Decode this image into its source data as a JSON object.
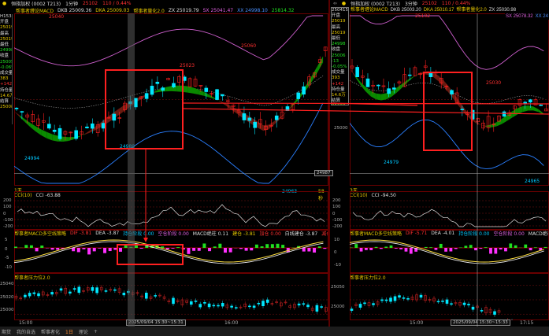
{
  "left": {
    "symbol": "恒指加权 (0002 T213)",
    "period": "1分钟",
    "price": "25102",
    "change": "110 / 0.44%",
    "main_indicator": "帮事者缠论MACD",
    "dkb": "DKB 25009.36",
    "dka": "DKA 25009.03",
    "quant": "帮事者量化2.0",
    "zx": "ZX 25019.79",
    "sx": "SX 25041.47",
    "xx": "XX 24998.10",
    "extra": "25814.32",
    "side_labels": [
      "开盘",
      "25019",
      "最高",
      "25019",
      "最低",
      "24998",
      "收盘",
      "25005",
      "-0.06%",
      "成交量",
      "383",
      "+142",
      "持仓量",
      "14.6万",
      "结算",
      "25008"
    ],
    "side_header": "H1530",
    "price_marks": {
      "high1": "25040",
      "high2": "25023",
      "high3": "25060",
      "low1": "24989",
      "low2": "24994",
      "low3": "24963",
      "last": "24987",
      "countdown": "58秒"
    },
    "range_label": "1天",
    "cci": {
      "title": "CCI(10)",
      "value": "CCI -63.88",
      "ticks": [
        "200",
        "100",
        "0",
        "-100",
        "-200"
      ]
    },
    "macd": {
      "title": "帮事者MACD多空线策略",
      "dif": "DIF -3.81",
      "dea": "DEA -3.87",
      "long": "持仓阶段 0.00",
      "short": "空仓阶段 0.00",
      "bar": "MACD绝柱 0.11",
      "open": "建仓 -3.81",
      "add": "加仓 0.00",
      "white": "白线建仓 -3.87",
      "reduce": "减仓操作 -3.87",
      "ticks": [
        "5",
        "0",
        "-5",
        "-10"
      ]
    },
    "pressure": {
      "title": "帮事者压力位2.0",
      "ticks": [
        "25040",
        "25020",
        "25000"
      ]
    },
    "time_ticks": [
      "15:00",
      "16:00"
    ],
    "cursor_time": "2025/09/04 15:30~15:31"
  },
  "right": {
    "symbol": "恒指加权 (0002 T213)",
    "period": "3分钟",
    "price": "25102",
    "change": "110 / 0.44%",
    "main_indicator": "帮事者缠论MACD",
    "dkb": "DKB 25003.20",
    "dka": "DKA 25010.17",
    "quant": "帮事者量化2.0",
    "zx": "ZX 25030.98",
    "sx": "SX 25078.32",
    "xx": "XX 24",
    "side_header": "25041530",
    "side_labels": [
      "开盘",
      "25019",
      "最高",
      "25019",
      "最低",
      "24998",
      "收盘",
      "25006",
      "-13",
      "-0.05%",
      "成交量",
      "393",
      "+142",
      "持仓量",
      "14.6万",
      "结算",
      "25008"
    ],
    "price_marks": {
      "high1": "25102",
      "high2": "25030",
      "low1": "24979",
      "low2": "24965",
      "axis": "25000"
    },
    "range_label": "3天",
    "cci": {
      "title": "CCI(10)",
      "value": "CCI -94.50",
      "ticks": [
        "200",
        "100",
        "0",
        "-100",
        "-200"
      ]
    },
    "macd": {
      "title": "帮事者MACD多空线策略",
      "dif": "DIF -5.71",
      "dea": "DEA -4.01",
      "long": "持仓阶段 0.00",
      "short": "空仓阶段 0.00",
      "bar": "MACD绝柱 -3.40",
      "open": "建仓",
      "ticks": [
        "10",
        "0",
        "-10"
      ]
    },
    "pressure": {
      "title": "帮事者压力位2.0",
      "ticks": [
        "25050",
        "25000"
      ]
    },
    "time_ticks": [
      "15:00",
      "17:15"
    ],
    "cursor_time": "2025/09/04 15:30~15:33"
  },
  "tabs": [
    "期货",
    "我的自选",
    "帮事者化",
    "1日",
    "理论",
    "+"
  ],
  "colors": {
    "up": "#ff2020",
    "down": "#00e8ff",
    "bg": "#000000",
    "border": "#6a0000",
    "accent": "#e8c800"
  }
}
